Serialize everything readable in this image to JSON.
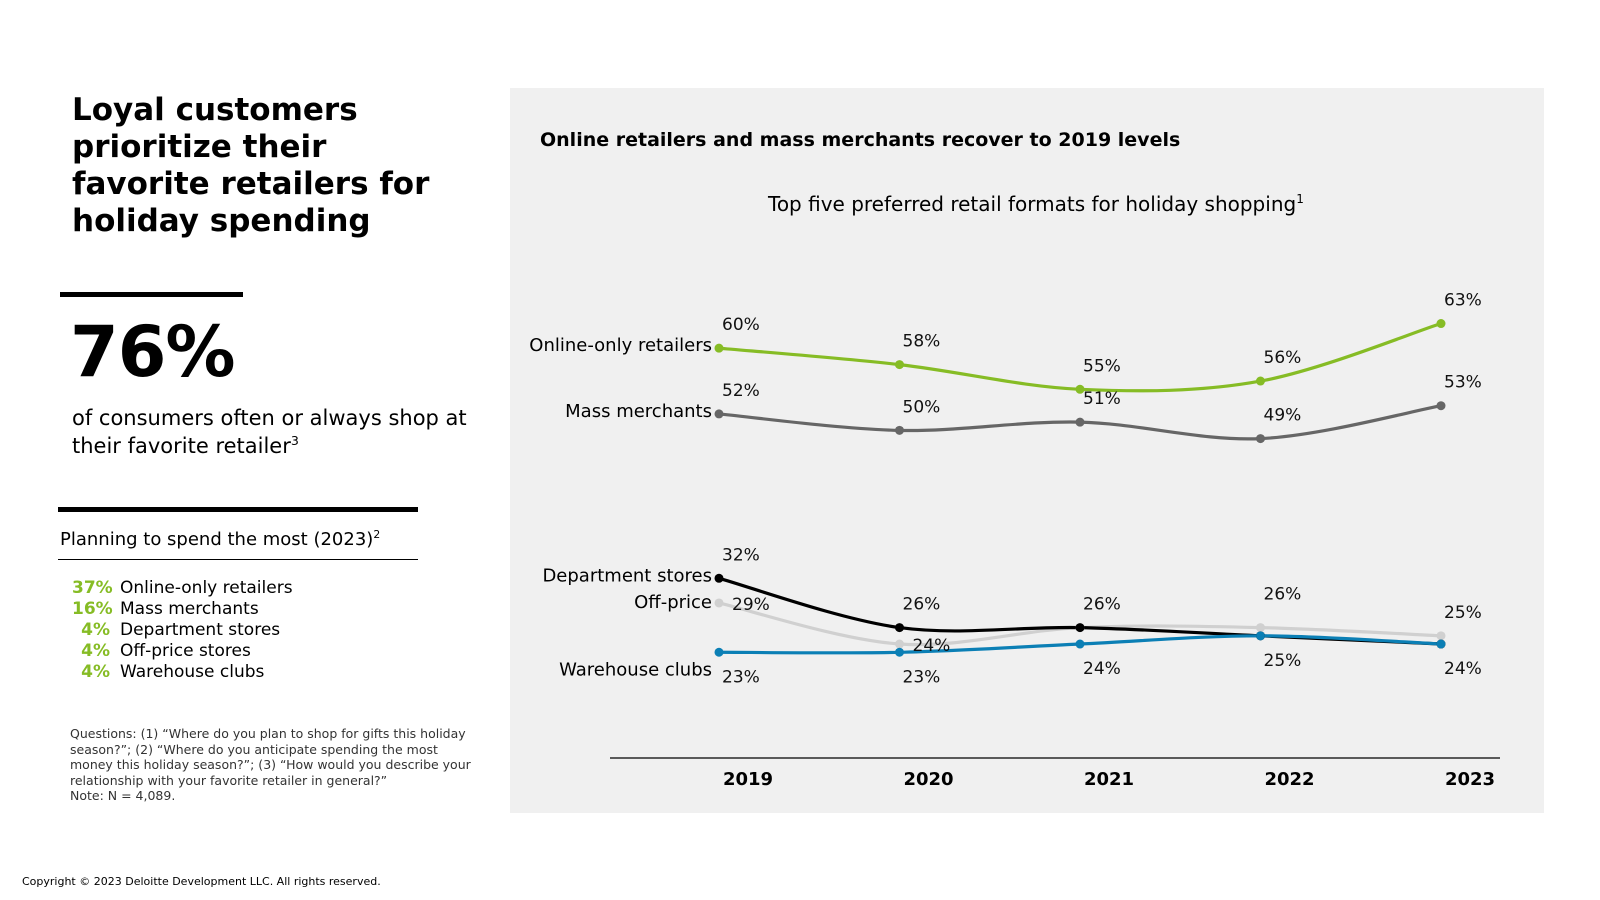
{
  "left": {
    "headline": "Loyal customers prioritize their favorite retailers for holiday spending",
    "stat": {
      "value": "76%",
      "desc": "of consumers often or always shop at their favorite retailer",
      "desc_sup": "3"
    },
    "spend": {
      "title": "Planning to spend the most (2023)",
      "title_sup": "2",
      "items": [
        {
          "pct": "37%",
          "label": "Online-only retailers"
        },
        {
          "pct": "16%",
          "label": "Mass merchants"
        },
        {
          "pct": "4%",
          "label": "Department stores"
        },
        {
          "pct": "4%",
          "label": "Off-price stores"
        },
        {
          "pct": "4%",
          "label": "Warehouse clubs"
        }
      ]
    },
    "notes": [
      "Questions: (1) “Where do you plan to shop for gifts this holiday season?”; (2) “Where do you anticipate spending the most money this holiday season?”; (3) “How would you describe your relationship with your favorite retailer in general?”",
      "Note: N = 4,089."
    ]
  },
  "copyright": "Copyright © 2023 Deloitte Development LLC. All rights reserved.",
  "colors": {
    "accent_green": "#86bc25",
    "dark_gray": "#666666",
    "black": "#000000",
    "light_gray": "#d0d0d0",
    "blue": "#0b7fb5",
    "panel_bg": "#f0f0f0"
  },
  "chart_data": {
    "type": "line",
    "panel_title": "Online retailers and mass merchants recover to 2019 levels",
    "title": "Top five preferred retail formats for holiday shopping",
    "title_sup": "1",
    "x": [
      "2019",
      "2020",
      "2021",
      "2022",
      "2023"
    ],
    "ylim": [
      15,
      70
    ],
    "grid": false,
    "series": [
      {
        "name": "Online-only retailers",
        "color": "#86bc25",
        "values": [
          60,
          58,
          55,
          56,
          63
        ]
      },
      {
        "name": "Mass merchants",
        "color": "#666666",
        "values": [
          52,
          50,
          51,
          49,
          53
        ]
      },
      {
        "name": "Off-price",
        "color": "#d0d0d0",
        "values": [
          29,
          24,
          26,
          26,
          25
        ]
      },
      {
        "name": "Department stores",
        "color": "#000000",
        "values": [
          32,
          26,
          26,
          25,
          24
        ]
      },
      {
        "name": "Warehouse clubs",
        "color": "#0b7fb5",
        "values": [
          23,
          23,
          24,
          25,
          24
        ]
      }
    ],
    "value_labels": [
      {
        "series": "Online-only retailers",
        "x": "2019",
        "text": "60%"
      },
      {
        "series": "Online-only retailers",
        "x": "2020",
        "text": "58%"
      },
      {
        "series": "Online-only retailers",
        "x": "2021",
        "text": "55%"
      },
      {
        "series": "Online-only retailers",
        "x": "2022",
        "text": "56%"
      },
      {
        "series": "Online-only retailers",
        "x": "2023",
        "text": "63%"
      },
      {
        "series": "Mass merchants",
        "x": "2019",
        "text": "52%"
      },
      {
        "series": "Mass merchants",
        "x": "2020",
        "text": "50%"
      },
      {
        "series": "Mass merchants",
        "x": "2021",
        "text": "51%"
      },
      {
        "series": "Mass merchants",
        "x": "2022",
        "text": "49%"
      },
      {
        "series": "Mass merchants",
        "x": "2023",
        "text": "53%"
      },
      {
        "series": "Department stores",
        "x": "2019",
        "text": "32%"
      },
      {
        "series": "Off-price",
        "x": "2019",
        "text": "29%"
      },
      {
        "series": "Warehouse clubs",
        "x": "2019",
        "text": "23%"
      },
      {
        "series": "Department stores",
        "x": "2020",
        "text": "26%"
      },
      {
        "series": "Off-price",
        "x": "2020",
        "text": "24%"
      },
      {
        "series": "Warehouse clubs",
        "x": "2020",
        "text": "23%"
      },
      {
        "series": "Department stores",
        "x": "2021",
        "text": "26%"
      },
      {
        "series": "Warehouse clubs",
        "x": "2021",
        "text": "24%"
      },
      {
        "series": "Off-price",
        "x": "2022",
        "text": "26%"
      },
      {
        "series": "Department stores",
        "x": "2022",
        "text": "25%"
      },
      {
        "series": "Off-price",
        "x": "2023",
        "text": "25%"
      },
      {
        "series": "Warehouse clubs",
        "x": "2023",
        "text": "24%"
      }
    ]
  }
}
